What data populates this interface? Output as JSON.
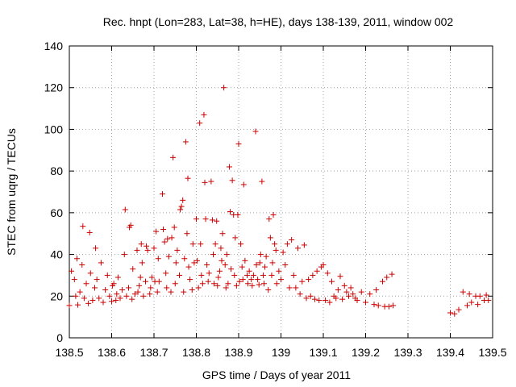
{
  "chart_data": {
    "type": "scatter",
    "title": "Rec. hnpt (Lon=283, Lat=38, h=HE), days 138-139, 2011, window 002",
    "xlabel": "GPS time / Days of year 2011",
    "ylabel": "STEC from uqrg / TECUs",
    "xlim": [
      138.5,
      139.5
    ],
    "ylim": [
      0,
      140
    ],
    "xticks": [
      "138.5",
      "138.6",
      "138.7",
      "138.8",
      "138.9",
      "139",
      "139.1",
      "139.2",
      "139.3",
      "139.4",
      "139.5"
    ],
    "yticks": [
      "0",
      "20",
      "40",
      "60",
      "80",
      "100",
      "120",
      "140"
    ],
    "grid": true,
    "marker": "plus",
    "color": "#cc0000",
    "points": [
      [
        138.5,
        15.5
      ],
      [
        138.505,
        32
      ],
      [
        138.512,
        28
      ],
      [
        138.515,
        20
      ],
      [
        138.518,
        38
      ],
      [
        138.52,
        15.8
      ],
      [
        138.525,
        22
      ],
      [
        138.53,
        35
      ],
      [
        138.532,
        53.5
      ],
      [
        138.535,
        19
      ],
      [
        138.54,
        26
      ],
      [
        138.545,
        16.5
      ],
      [
        138.548,
        50.5
      ],
      [
        138.55,
        31
      ],
      [
        138.555,
        18
      ],
      [
        138.56,
        24
      ],
      [
        138.562,
        43
      ],
      [
        138.565,
        28
      ],
      [
        138.57,
        19
      ],
      [
        138.575,
        36
      ],
      [
        138.58,
        17
      ],
      [
        138.585,
        23
      ],
      [
        138.59,
        30
      ],
      [
        138.595,
        20
      ],
      [
        138.6,
        17.5
      ],
      [
        138.602,
        25
      ],
      [
        138.605,
        26
      ],
      [
        138.61,
        18
      ],
      [
        138.612,
        21
      ],
      [
        138.615,
        29
      ],
      [
        138.62,
        19
      ],
      [
        138.625,
        23
      ],
      [
        138.63,
        40
      ],
      [
        138.632,
        61.5
      ],
      [
        138.635,
        20
      ],
      [
        138.64,
        24
      ],
      [
        138.642,
        53
      ],
      [
        138.645,
        54
      ],
      [
        138.648,
        18.5
      ],
      [
        138.65,
        33
      ],
      [
        138.655,
        21
      ],
      [
        138.66,
        42
      ],
      [
        138.662,
        22
      ],
      [
        138.665,
        25
      ],
      [
        138.668,
        29
      ],
      [
        138.67,
        45
      ],
      [
        138.672,
        36
      ],
      [
        138.675,
        20
      ],
      [
        138.68,
        27
      ],
      [
        138.682,
        44
      ],
      [
        138.685,
        42
      ],
      [
        138.69,
        21
      ],
      [
        138.692,
        24
      ],
      [
        138.695,
        29
      ],
      [
        138.7,
        43
      ],
      [
        138.702,
        27
      ],
      [
        138.705,
        51
      ],
      [
        138.708,
        22
      ],
      [
        138.71,
        38
      ],
      [
        138.712,
        27
      ],
      [
        138.72,
        69
      ],
      [
        138.722,
        52
      ],
      [
        138.725,
        46
      ],
      [
        138.728,
        31
      ],
      [
        138.73,
        24
      ],
      [
        138.732,
        47.5
      ],
      [
        138.735,
        39
      ],
      [
        138.74,
        22
      ],
      [
        138.742,
        48
      ],
      [
        138.745,
        86.5
      ],
      [
        138.748,
        53
      ],
      [
        138.75,
        26
      ],
      [
        138.752,
        36
      ],
      [
        138.755,
        42
      ],
      [
        138.76,
        30
      ],
      [
        138.762,
        61.5
      ],
      [
        138.765,
        63
      ],
      [
        138.768,
        66
      ],
      [
        138.77,
        22
      ],
      [
        138.772,
        38
      ],
      [
        138.775,
        94
      ],
      [
        138.778,
        50
      ],
      [
        138.78,
        76.5
      ],
      [
        138.782,
        34
      ],
      [
        138.785,
        28
      ],
      [
        138.79,
        23
      ],
      [
        138.792,
        45
      ],
      [
        138.795,
        36
      ],
      [
        138.8,
        57
      ],
      [
        138.802,
        37
      ],
      [
        138.805,
        24
      ],
      [
        138.808,
        103
      ],
      [
        138.81,
        45
      ],
      [
        138.812,
        30
      ],
      [
        138.815,
        26
      ],
      [
        138.818,
        107
      ],
      [
        138.82,
        74.5
      ],
      [
        138.822,
        57
      ],
      [
        138.825,
        35
      ],
      [
        138.828,
        27
      ],
      [
        138.83,
        31
      ],
      [
        138.835,
        75
      ],
      [
        138.838,
        56.5
      ],
      [
        138.84,
        40
      ],
      [
        138.842,
        26
      ],
      [
        138.845,
        45
      ],
      [
        138.848,
        56
      ],
      [
        138.85,
        25
      ],
      [
        138.852,
        29
      ],
      [
        138.855,
        32
      ],
      [
        138.858,
        43
      ],
      [
        138.86,
        37
      ],
      [
        138.862,
        50
      ],
      [
        138.865,
        120
      ],
      [
        138.868,
        35
      ],
      [
        138.87,
        24
      ],
      [
        138.872,
        40
      ],
      [
        138.875,
        26
      ],
      [
        138.878,
        82
      ],
      [
        138.88,
        60.5
      ],
      [
        138.882,
        33
      ],
      [
        138.885,
        75.5
      ],
      [
        138.888,
        59
      ],
      [
        138.89,
        30
      ],
      [
        138.892,
        48
      ],
      [
        138.895,
        25
      ],
      [
        138.898,
        59
      ],
      [
        138.9,
        93
      ],
      [
        138.902,
        27
      ],
      [
        138.905,
        45
      ],
      [
        138.908,
        34
      ],
      [
        138.91,
        28
      ],
      [
        138.912,
        73.5
      ],
      [
        138.915,
        37
      ],
      [
        138.92,
        30
      ],
      [
        138.922,
        26
      ],
      [
        138.925,
        32
      ],
      [
        138.93,
        28
      ],
      [
        138.932,
        25
      ],
      [
        138.935,
        30
      ],
      [
        138.94,
        99
      ],
      [
        138.942,
        35
      ],
      [
        138.945,
        28
      ],
      [
        138.948,
        25.5
      ],
      [
        138.95,
        36
      ],
      [
        138.952,
        40
      ],
      [
        138.955,
        75
      ],
      [
        138.958,
        30
      ],
      [
        138.96,
        26
      ],
      [
        138.962,
        34
      ],
      [
        138.965,
        39
      ],
      [
        138.97,
        23
      ],
      [
        138.972,
        57
      ],
      [
        138.975,
        48
      ],
      [
        138.978,
        30
      ],
      [
        138.98,
        36
      ],
      [
        138.982,
        59
      ],
      [
        138.985,
        45
      ],
      [
        138.988,
        42
      ],
      [
        138.99,
        26
      ],
      [
        138.995,
        32
      ],
      [
        139.0,
        28
      ],
      [
        139.005,
        41
      ],
      [
        139.01,
        35
      ],
      [
        139.015,
        45
      ],
      [
        139.02,
        24
      ],
      [
        139.025,
        47
      ],
      [
        139.03,
        30
      ],
      [
        139.035,
        24
      ],
      [
        139.04,
        43
      ],
      [
        139.045,
        21
      ],
      [
        139.05,
        27
      ],
      [
        139.055,
        44.5
      ],
      [
        139.06,
        19
      ],
      [
        139.065,
        28
      ],
      [
        139.07,
        20
      ],
      [
        139.075,
        30
      ],
      [
        139.08,
        18.5
      ],
      [
        139.085,
        32
      ],
      [
        139.09,
        18
      ],
      [
        139.095,
        34
      ],
      [
        139.1,
        35
      ],
      [
        139.105,
        18
      ],
      [
        139.11,
        31
      ],
      [
        139.115,
        17
      ],
      [
        139.12,
        27
      ],
      [
        139.125,
        20
      ],
      [
        139.13,
        19
      ],
      [
        139.135,
        23
      ],
      [
        139.14,
        29.5
      ],
      [
        139.145,
        18.5
      ],
      [
        139.15,
        25
      ],
      [
        139.155,
        22
      ],
      [
        139.16,
        20
      ],
      [
        139.165,
        24
      ],
      [
        139.17,
        21
      ],
      [
        139.175,
        19
      ],
      [
        139.18,
        18
      ],
      [
        139.19,
        22
      ],
      [
        139.2,
        17
      ],
      [
        139.21,
        21
      ],
      [
        139.22,
        16
      ],
      [
        139.225,
        23
      ],
      [
        139.23,
        15.5
      ],
      [
        139.24,
        27
      ],
      [
        139.245,
        15
      ],
      [
        139.25,
        29
      ],
      [
        139.255,
        15
      ],
      [
        139.262,
        30.5
      ],
      [
        139.265,
        15.5
      ],
      [
        139.4,
        12
      ],
      [
        139.41,
        11.5
      ],
      [
        139.42,
        13.5
      ],
      [
        139.43,
        22
      ],
      [
        139.44,
        15.5
      ],
      [
        139.445,
        21
      ],
      [
        139.45,
        17
      ],
      [
        139.46,
        20
      ],
      [
        139.465,
        16
      ],
      [
        139.47,
        20
      ],
      [
        139.48,
        18
      ],
      [
        139.485,
        20.5
      ],
      [
        139.49,
        18
      ]
    ]
  }
}
